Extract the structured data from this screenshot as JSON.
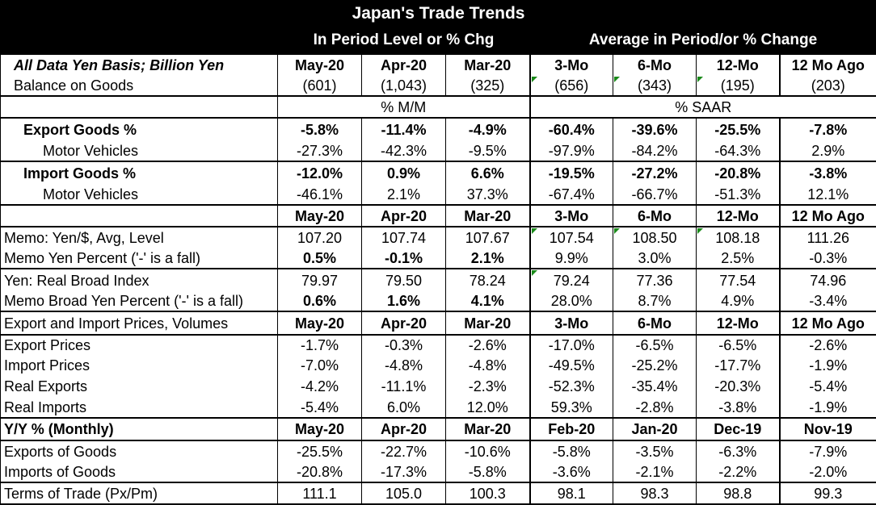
{
  "title": "Japan's Trade Trends",
  "headers": {
    "in_period": "In Period Level or % Chg",
    "average": "Average in Period/or % Change"
  },
  "columns": [
    "May-20",
    "Apr-20",
    "Mar-20",
    "3-Mo",
    "6-Mo",
    "12-Mo",
    "12 Mo Ago"
  ],
  "yy_columns": [
    "May-20",
    "Apr-20",
    "Mar-20",
    "Feb-20",
    "Jan-20",
    "Dec-19",
    "Nov-19"
  ],
  "labels": {
    "basis": "All Data Yen Basis; Billion Yen",
    "balance": "Balance on Goods",
    "pct_mm": "% M/M",
    "pct_saar": "% SAAR",
    "export_goods": "Export Goods %",
    "export_mv": "Motor Vehicles",
    "import_goods": "Import Goods %",
    "import_mv": "Motor Vehicles",
    "memo_yen_level": "Memo: Yen/$, Avg, Level",
    "memo_yen_pct": "Memo Yen Percent ('-' is a fall)",
    "real_broad": "Yen: Real Broad Index",
    "memo_broad_pct": "Memo Broad Yen Percent ('-' is a fall)",
    "prices_volumes": "Export and Import Prices, Volumes",
    "export_prices": "Export Prices",
    "import_prices": "Import Prices",
    "real_exports": "Real Exports",
    "real_imports": "Real Imports",
    "yy": "Y/Y % (Monthly)",
    "exports_goods": "Exports of Goods",
    "imports_goods": "Imports of Goods",
    "terms_of_trade": "Terms of Trade (Px/Pm)"
  },
  "rows": {
    "balance": [
      "(601)",
      "(1,043)",
      "(325)",
      "(656)",
      "(343)",
      "(195)",
      "(203)"
    ],
    "export_goods": [
      "-5.8%",
      "-11.4%",
      "-4.9%",
      "-60.4%",
      "-39.6%",
      "-25.5%",
      "-7.8%"
    ],
    "export_mv": [
      "-27.3%",
      "-42.3%",
      "-9.5%",
      "-97.9%",
      "-84.2%",
      "-64.3%",
      "2.9%"
    ],
    "import_goods": [
      "-12.0%",
      "0.9%",
      "6.6%",
      "-19.5%",
      "-27.2%",
      "-20.8%",
      "-3.8%"
    ],
    "import_mv": [
      "-46.1%",
      "2.1%",
      "37.3%",
      "-67.4%",
      "-66.7%",
      "-51.3%",
      "12.1%"
    ],
    "memo_yen_level": [
      "107.20",
      "107.74",
      "107.67",
      "107.54",
      "108.50",
      "108.18",
      "111.26"
    ],
    "memo_yen_pct": [
      "0.5%",
      "-0.1%",
      "2.1%",
      "9.9%",
      "3.0%",
      "2.5%",
      "-0.3%"
    ],
    "real_broad": [
      "79.97",
      "79.50",
      "78.24",
      "79.24",
      "77.36",
      "77.54",
      "74.96"
    ],
    "memo_broad_pct": [
      "0.6%",
      "1.6%",
      "4.1%",
      "28.0%",
      "8.7%",
      "4.9%",
      "-3.4%"
    ],
    "export_prices": [
      "-1.7%",
      "-0.3%",
      "-2.6%",
      "-17.0%",
      "-6.5%",
      "-6.5%",
      "-2.6%"
    ],
    "import_prices": [
      "-7.0%",
      "-4.8%",
      "-4.8%",
      "-49.5%",
      "-25.2%",
      "-17.7%",
      "-1.9%"
    ],
    "real_exports": [
      "-4.2%",
      "-11.1%",
      "-2.3%",
      "-52.3%",
      "-35.4%",
      "-20.3%",
      "-5.4%"
    ],
    "real_imports": [
      "-5.4%",
      "6.0%",
      "12.0%",
      "59.3%",
      "-2.8%",
      "-3.8%",
      "-1.9%"
    ],
    "exports_goods": [
      "-25.5%",
      "-22.7%",
      "-10.6%",
      "-5.8%",
      "-3.5%",
      "-6.3%",
      "-7.9%"
    ],
    "imports_goods": [
      "-20.8%",
      "-17.3%",
      "-5.8%",
      "-3.6%",
      "-2.1%",
      "-2.2%",
      "-2.0%"
    ],
    "terms_of_trade": [
      "111.1",
      "105.0",
      "100.3",
      "98.1",
      "98.3",
      "98.8",
      "99.3"
    ]
  },
  "colors": {
    "header_bg": "#000000",
    "header_text": "#ffffff",
    "marker": "#1a8a1a"
  }
}
